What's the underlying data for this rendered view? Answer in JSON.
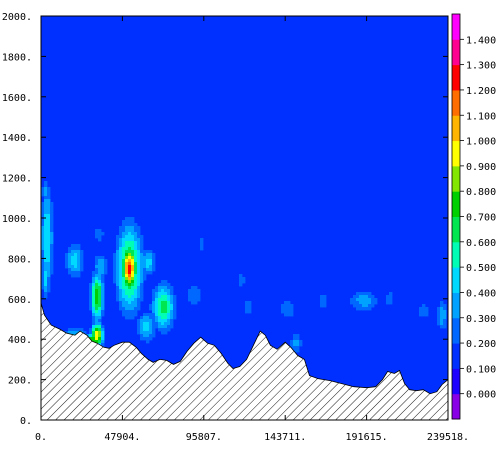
{
  "chart_data": {
    "type": "heatmap",
    "title": "",
    "xlabel": "",
    "ylabel": "",
    "xlim": [
      0,
      239518
    ],
    "ylim": [
      0,
      2000
    ],
    "x_tick_labels": [
      "0.",
      "47904.",
      "95807.",
      "143711.",
      "191615.",
      "239518."
    ],
    "x_tick_values": [
      0,
      47904,
      95807,
      143711,
      191615,
      239518
    ],
    "y_tick_labels": [
      "0.",
      "200.",
      "400.",
      "600.",
      "800.",
      "1000.",
      "1200.",
      "1400.",
      "1600.",
      "1800.",
      "2000."
    ],
    "y_tick_values": [
      0,
      200,
      400,
      600,
      800,
      1000,
      1200,
      1400,
      1600,
      1800,
      2000
    ],
    "colorbar": {
      "labels": [
        "0.000",
        "0.100",
        "0.200",
        "0.300",
        "0.400",
        "0.500",
        "0.600",
        "0.700",
        "0.800",
        "0.900",
        "1.000",
        "1.100",
        "1.200",
        "1.300",
        "1.400"
      ],
      "levels": [
        0,
        0.1,
        0.2,
        0.3,
        0.4,
        0.5,
        0.6,
        0.7,
        0.8,
        0.9,
        1.0,
        1.1,
        1.2,
        1.3,
        1.4
      ],
      "colors": [
        "#8a00e6",
        "#1d00ff",
        "#0030ff",
        "#0068ff",
        "#00a2ff",
        "#00d9ff",
        "#00ffb4",
        "#00e650",
        "#00d000",
        "#82e600",
        "#ffff00",
        "#ffb400",
        "#ff6e00",
        "#ff0000",
        "#ff0090",
        "#ff00ff"
      ]
    },
    "background_value": 0.1,
    "terrain": [
      [
        0,
        580
      ],
      [
        2000,
        520
      ],
      [
        6000,
        470
      ],
      [
        11000,
        450
      ],
      [
        15000,
        430
      ],
      [
        20000,
        420
      ],
      [
        23000,
        440
      ],
      [
        27000,
        420
      ],
      [
        30000,
        390
      ],
      [
        33000,
        380
      ],
      [
        37000,
        360
      ],
      [
        40000,
        355
      ],
      [
        43000,
        370
      ],
      [
        47904,
        385
      ],
      [
        52000,
        385
      ],
      [
        56000,
        360
      ],
      [
        59000,
        330
      ],
      [
        63000,
        300
      ],
      [
        66000,
        285
      ],
      [
        70000,
        300
      ],
      [
        74000,
        295
      ],
      [
        78000,
        275
      ],
      [
        82000,
        290
      ],
      [
        86000,
        340
      ],
      [
        90000,
        380
      ],
      [
        94000,
        410
      ],
      [
        98000,
        380
      ],
      [
        102000,
        370
      ],
      [
        106000,
        330
      ],
      [
        110000,
        280
      ],
      [
        113000,
        255
      ],
      [
        117000,
        265
      ],
      [
        121000,
        300
      ],
      [
        125000,
        370
      ],
      [
        129000,
        440
      ],
      [
        132000,
        420
      ],
      [
        135000,
        370
      ],
      [
        139000,
        350
      ],
      [
        143711,
        385
      ],
      [
        147000,
        360
      ],
      [
        151000,
        320
      ],
      [
        155000,
        300
      ],
      [
        158000,
        220
      ],
      [
        163000,
        205
      ],
      [
        170000,
        195
      ],
      [
        177000,
        180
      ],
      [
        184000,
        165
      ],
      [
        191615,
        160
      ],
      [
        197000,
        165
      ],
      [
        201000,
        200
      ],
      [
        204000,
        240
      ],
      [
        208000,
        230
      ],
      [
        211000,
        245
      ],
      [
        214000,
        180
      ],
      [
        217000,
        150
      ],
      [
        221000,
        145
      ],
      [
        225000,
        150
      ],
      [
        229000,
        130
      ],
      [
        233000,
        140
      ],
      [
        236000,
        175
      ],
      [
        239518,
        200
      ]
    ],
    "features": [
      {
        "x": 3500,
        "y": 900,
        "rx": 3800,
        "ry": 280,
        "peak": 0.5
      },
      {
        "x": 2500,
        "y": 1130,
        "rx": 2500,
        "ry": 70,
        "peak": 0.35
      },
      {
        "x": 2500,
        "y": 700,
        "rx": 2200,
        "ry": 110,
        "peak": 0.45
      },
      {
        "x": 20000,
        "y": 410,
        "rx": 9000,
        "ry": 45,
        "peak": 0.5
      },
      {
        "x": 30000,
        "y": 395,
        "rx": 4000,
        "ry": 30,
        "peak": 0.85
      },
      {
        "x": 33000,
        "y": 420,
        "rx": 3500,
        "ry": 60,
        "peak": 1.0
      },
      {
        "x": 33000,
        "y": 610,
        "rx": 3800,
        "ry": 120,
        "peak": 0.8
      },
      {
        "x": 20000,
        "y": 790,
        "rx": 6000,
        "ry": 90,
        "peak": 0.45
      },
      {
        "x": 35000,
        "y": 760,
        "rx": 4500,
        "ry": 70,
        "peak": 0.4
      },
      {
        "x": 34000,
        "y": 920,
        "rx": 3500,
        "ry": 50,
        "peak": 0.3
      },
      {
        "x": 52000,
        "y": 750,
        "rx": 8000,
        "ry": 220,
        "peak": 0.75
      },
      {
        "x": 52000,
        "y": 750,
        "rx": 4200,
        "ry": 110,
        "peak": 1.25
      },
      {
        "x": 63000,
        "y": 780,
        "rx": 5000,
        "ry": 70,
        "peak": 0.45
      },
      {
        "x": 72000,
        "y": 560,
        "rx": 7000,
        "ry": 120,
        "peak": 0.65
      },
      {
        "x": 62000,
        "y": 460,
        "rx": 6000,
        "ry": 80,
        "peak": 0.45
      },
      {
        "x": 90000,
        "y": 620,
        "rx": 5000,
        "ry": 80,
        "peak": 0.3
      },
      {
        "x": 94000,
        "y": 870,
        "rx": 1500,
        "ry": 50,
        "peak": 0.3
      },
      {
        "x": 122000,
        "y": 560,
        "rx": 2500,
        "ry": 60,
        "peak": 0.3
      },
      {
        "x": 118000,
        "y": 690,
        "rx": 2000,
        "ry": 50,
        "peak": 0.3
      },
      {
        "x": 150000,
        "y": 380,
        "rx": 4000,
        "ry": 60,
        "peak": 0.35
      },
      {
        "x": 145000,
        "y": 550,
        "rx": 6000,
        "ry": 60,
        "peak": 0.3
      },
      {
        "x": 166000,
        "y": 590,
        "rx": 4000,
        "ry": 40,
        "peak": 0.3
      },
      {
        "x": 190000,
        "y": 590,
        "rx": 10000,
        "ry": 65,
        "peak": 0.35
      },
      {
        "x": 205000,
        "y": 600,
        "rx": 3000,
        "ry": 50,
        "peak": 0.3
      },
      {
        "x": 225000,
        "y": 540,
        "rx": 4000,
        "ry": 50,
        "peak": 0.3
      },
      {
        "x": 236000,
        "y": 520,
        "rx": 3500,
        "ry": 80,
        "peak": 0.4
      }
    ]
  }
}
